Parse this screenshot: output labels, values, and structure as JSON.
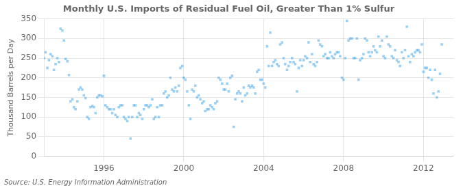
{
  "chart_data": {
    "type": "scatter",
    "title": "Monthly U.S. Imports of Residual Fuel Oil, Greater Than 1% Sulfur",
    "ylabel": "Thousand Barrels per Day",
    "annotation": "Source: U.S. Energy Information Administration",
    "marker": "square",
    "grid": true,
    "xlim": [
      1993.0,
      2013.5
    ],
    "xticks": [
      1996,
      2000,
      2004,
      2008,
      2012
    ],
    "ylim": [
      0,
      350
    ],
    "yticks": [
      0,
      50,
      100,
      150,
      200,
      250,
      300,
      350
    ],
    "x": [
      1993.0,
      1993.08,
      1993.17,
      1993.25,
      1993.33,
      1993.42,
      1993.5,
      1993.58,
      1993.67,
      1993.75,
      1993.83,
      1993.92,
      1994.0,
      1994.08,
      1994.17,
      1994.25,
      1994.33,
      1994.42,
      1994.5,
      1994.58,
      1994.67,
      1994.75,
      1994.83,
      1994.92,
      1995.0,
      1995.08,
      1995.17,
      1995.25,
      1995.33,
      1995.42,
      1995.5,
      1995.58,
      1995.67,
      1995.75,
      1995.83,
      1995.92,
      1996.0,
      1996.08,
      1996.17,
      1996.25,
      1996.33,
      1996.42,
      1996.5,
      1996.58,
      1996.67,
      1996.75,
      1996.83,
      1996.92,
      1997.0,
      1997.08,
      1997.17,
      1997.25,
      1997.33,
      1997.42,
      1997.5,
      1997.58,
      1997.67,
      1997.75,
      1997.83,
      1997.92,
      1998.0,
      1998.08,
      1998.17,
      1998.25,
      1998.33,
      1998.42,
      1998.5,
      1998.58,
      1998.67,
      1998.75,
      1998.83,
      1998.92,
      1999.0,
      1999.08,
      1999.17,
      1999.25,
      1999.33,
      1999.42,
      1999.5,
      1999.58,
      1999.67,
      1999.75,
      1999.83,
      1999.92,
      2000.0,
      2000.08,
      2000.17,
      2000.25,
      2000.33,
      2000.42,
      2000.5,
      2000.58,
      2000.67,
      2000.75,
      2000.83,
      2000.92,
      2001.0,
      2001.08,
      2001.17,
      2001.25,
      2001.33,
      2001.42,
      2001.5,
      2001.58,
      2001.67,
      2001.75,
      2001.83,
      2001.92,
      2002.0,
      2002.08,
      2002.17,
      2002.25,
      2002.33,
      2002.42,
      2002.5,
      2002.58,
      2002.67,
      2002.75,
      2002.83,
      2002.92,
      2003.0,
      2003.08,
      2003.17,
      2003.25,
      2003.33,
      2003.42,
      2003.5,
      2003.58,
      2003.67,
      2003.75,
      2003.83,
      2003.92,
      2004.0,
      2004.08,
      2004.17,
      2004.25,
      2004.33,
      2004.42,
      2004.5,
      2004.58,
      2004.67,
      2004.75,
      2004.83,
      2004.92,
      2005.0,
      2005.08,
      2005.17,
      2005.25,
      2005.33,
      2005.42,
      2005.5,
      2005.58,
      2005.67,
      2005.75,
      2005.83,
      2005.92,
      2006.0,
      2006.08,
      2006.17,
      2006.25,
      2006.33,
      2006.42,
      2006.5,
      2006.58,
      2006.67,
      2006.75,
      2006.83,
      2006.92,
      2007.0,
      2007.08,
      2007.17,
      2007.25,
      2007.33,
      2007.42,
      2007.5,
      2007.58,
      2007.67,
      2007.75,
      2007.83,
      2007.92,
      2008.0,
      2008.08,
      2008.17,
      2008.25,
      2008.33,
      2008.42,
      2008.5,
      2008.58,
      2008.67,
      2008.75,
      2008.83,
      2008.92,
      2009.0,
      2009.08,
      2009.17,
      2009.25,
      2009.33,
      2009.42,
      2009.5,
      2009.58,
      2009.67,
      2009.75,
      2009.83,
      2009.92,
      2010.0,
      2010.08,
      2010.17,
      2010.25,
      2010.33,
      2010.42,
      2010.5,
      2010.58,
      2010.67,
      2010.75,
      2010.83,
      2010.92,
      2011.0,
      2011.08,
      2011.17,
      2011.25,
      2011.33,
      2011.42,
      2011.5,
      2011.58,
      2011.67,
      2011.75,
      2011.83,
      2011.92,
      2012.0,
      2012.08,
      2012.17,
      2012.25,
      2012.33,
      2012.42,
      2012.5,
      2012.58,
      2012.67,
      2012.75,
      2012.83,
      2012.92
    ],
    "values": [
      250,
      265,
      225,
      245,
      260,
      255,
      220,
      235,
      250,
      240,
      325,
      320,
      295,
      248,
      242,
      207,
      140,
      145,
      125,
      120,
      140,
      170,
      175,
      170,
      155,
      148,
      100,
      95,
      125,
      128,
      125,
      110,
      150,
      155,
      155,
      153,
      205,
      130,
      125,
      120,
      120,
      110,
      120,
      105,
      100,
      125,
      130,
      130,
      100,
      95,
      90,
      100,
      45,
      100,
      130,
      130,
      100,
      110,
      105,
      95,
      120,
      130,
      130,
      125,
      130,
      145,
      95,
      100,
      125,
      100,
      130,
      130,
      160,
      165,
      150,
      155,
      200,
      170,
      165,
      175,
      165,
      180,
      225,
      230,
      200,
      195,
      165,
      130,
      95,
      170,
      165,
      180,
      150,
      155,
      145,
      135,
      140,
      115,
      120,
      120,
      130,
      125,
      120,
      135,
      140,
      200,
      195,
      185,
      170,
      170,
      185,
      165,
      200,
      205,
      75,
      145,
      160,
      165,
      160,
      140,
      175,
      155,
      160,
      180,
      175,
      180,
      175,
      160,
      215,
      220,
      195,
      195,
      185,
      175,
      280,
      230,
      315,
      230,
      240,
      245,
      235,
      230,
      285,
      290,
      250,
      235,
      220,
      230,
      240,
      250,
      240,
      235,
      165,
      225,
      245,
      230,
      245,
      255,
      250,
      290,
      240,
      260,
      235,
      230,
      240,
      295,
      285,
      280,
      255,
      260,
      250,
      250,
      265,
      255,
      250,
      260,
      265,
      265,
      255,
      200,
      195,
      250,
      345,
      295,
      300,
      300,
      250,
      250,
      300,
      195,
      245,
      250,
      260,
      300,
      295,
      265,
      255,
      265,
      280,
      270,
      265,
      305,
      280,
      295,
      255,
      250,
      305,
      285,
      280,
      255,
      250,
      270,
      245,
      240,
      230,
      265,
      250,
      270,
      330,
      255,
      240,
      260,
      255,
      265,
      270,
      270,
      265,
      285,
      215,
      225,
      225,
      200,
      220,
      195,
      160,
      220,
      150,
      165,
      210,
      285
    ]
  }
}
